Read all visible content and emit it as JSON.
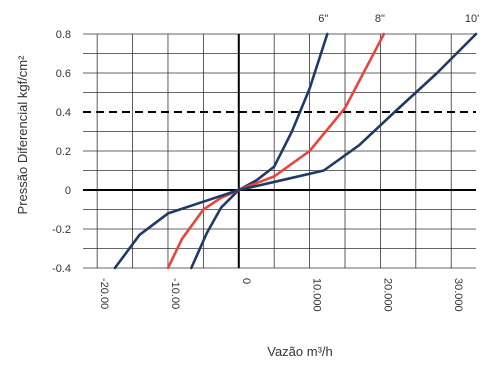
{
  "chart_data": {
    "type": "line",
    "xlabel": "Vazão m³/h",
    "ylabel": "Pressão Diferencial kgf/cm²",
    "xlim": [
      -22000,
      33500
    ],
    "ylim": [
      -0.4,
      0.8
    ],
    "xticks": [
      -20000,
      -10000,
      0,
      10000,
      20000,
      30000
    ],
    "xtick_labels": [
      "-20.00",
      "-10.00",
      "0",
      "10.000",
      "20.000",
      "30.000"
    ],
    "yticks": [
      -0.4,
      -0.2,
      0,
      0.2,
      0.4,
      0.6,
      0.8
    ],
    "ytick_labels": [
      "-0.4",
      "-0.2",
      "0",
      "0.2",
      "0.4",
      "0.6",
      "0.8"
    ],
    "grid": true,
    "reference_line": {
      "y": 0.4,
      "style": "dashed"
    },
    "series": [
      {
        "name": "6\"",
        "color": "#1f3a66",
        "x": [
          -6700,
          -4500,
          -2500,
          0,
          2500,
          5000,
          7500,
          10000,
          12500
        ],
        "y": [
          -0.4,
          -0.22,
          -0.09,
          0,
          0.05,
          0.12,
          0.3,
          0.52,
          0.8
        ]
      },
      {
        "name": "8\"",
        "color": "#e8453c",
        "x": [
          -10000,
          -8000,
          -5000,
          -2500,
          0,
          5000,
          10000,
          15000,
          20500
        ],
        "y": [
          -0.4,
          -0.25,
          -0.1,
          -0.04,
          0,
          0.07,
          0.2,
          0.42,
          0.8
        ]
      },
      {
        "name": "10'",
        "color": "#1f3a66",
        "x": [
          -17500,
          -14000,
          -10000,
          -5000,
          0,
          6000,
          12000,
          17000,
          22000,
          28000,
          33500
        ],
        "y": [
          -0.4,
          -0.23,
          -0.12,
          -0.06,
          0,
          0.05,
          0.1,
          0.23,
          0.4,
          0.6,
          0.8
        ]
      }
    ]
  }
}
